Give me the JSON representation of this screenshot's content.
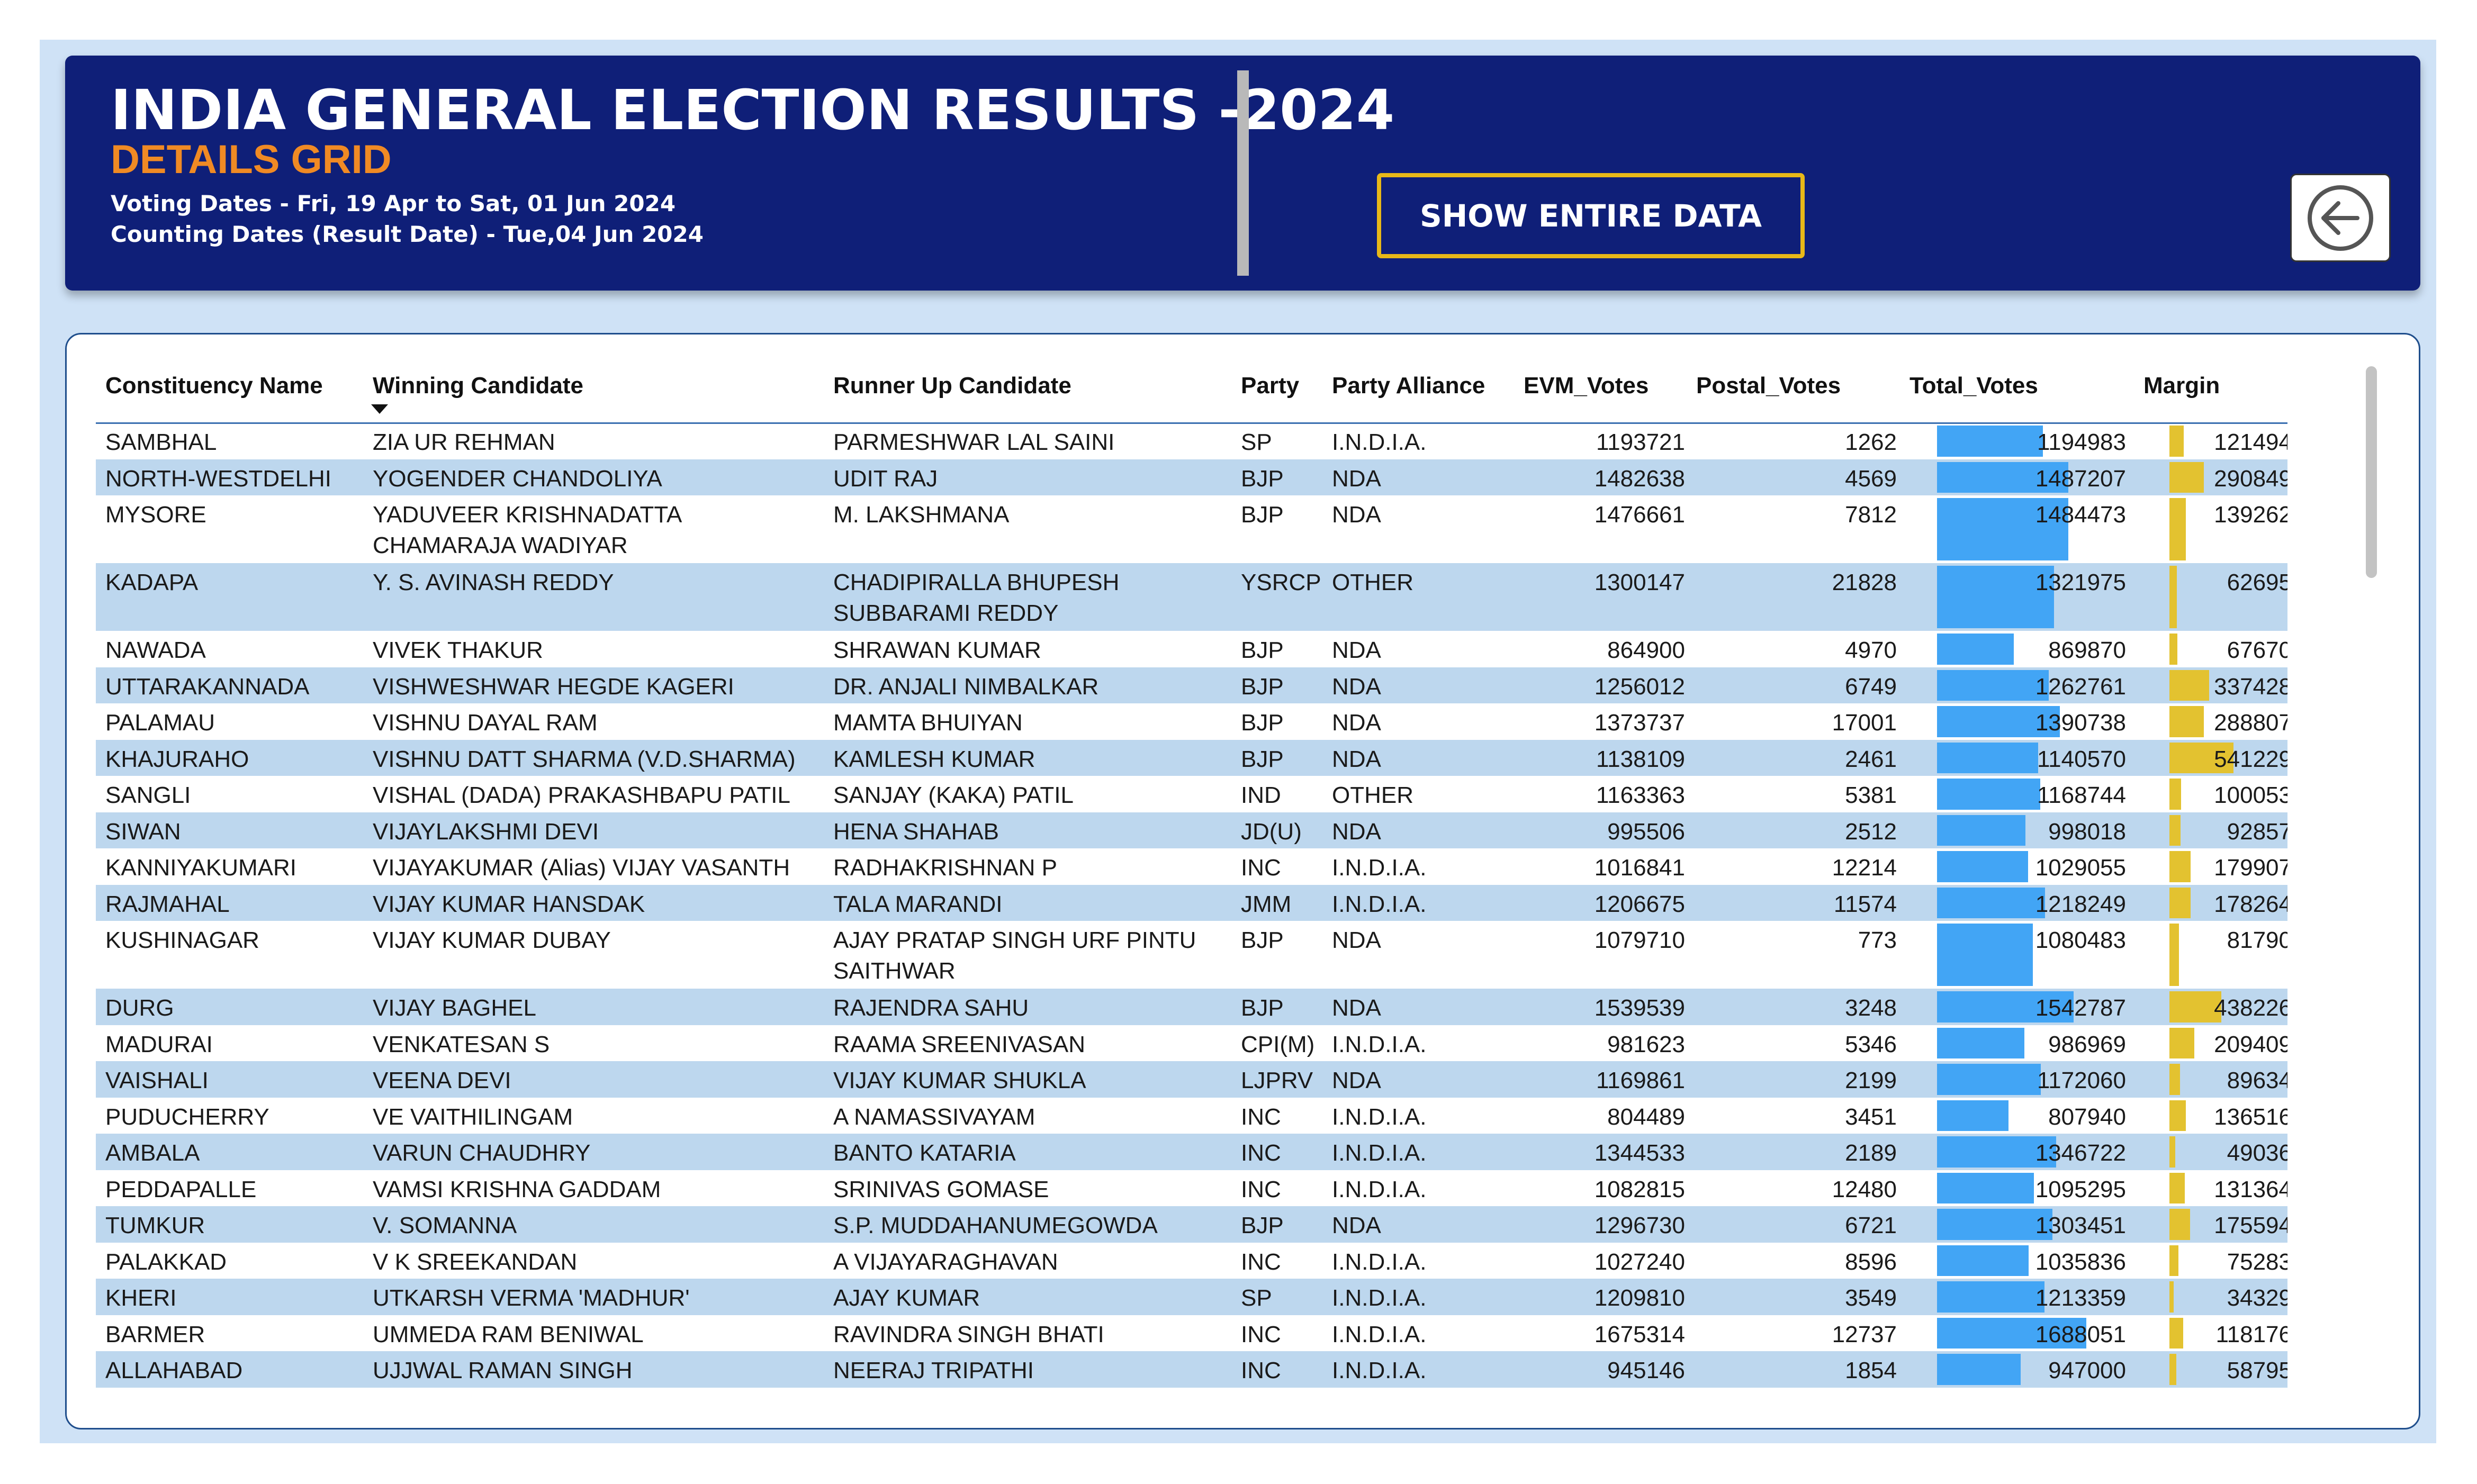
{
  "header": {
    "title": "INDIA GENERAL ELECTION RESULTS -2024",
    "subtitle": "DETAILS GRID",
    "voting_dates": "Voting Dates - Fri, 19 Apr to Sat, 01 Jun 2024",
    "counting_dates": "Counting Dates (Result Date) - Tue,04 Jun 2024",
    "show_button_label": "SHOW ENTIRE DATA",
    "back_icon": "back-arrow-icon"
  },
  "table": {
    "columns": [
      "Constituency Name",
      "Winning Candidate",
      "Runner Up Candidate",
      "Party",
      "Party Alliance",
      "EVM_Votes",
      "Postal_Votes",
      "Total_Votes",
      "Margin"
    ],
    "sorted_column": "Winning Candidate",
    "sort_direction": "descending",
    "bar_colors": {
      "total_votes": "#42a5f5",
      "margin": "#e3c230"
    },
    "rows": [
      {
        "constituency": "SAMBHAL",
        "winner": "ZIA UR REHMAN",
        "runner_up": "PARMESHWAR LAL SAINI",
        "party": "SP",
        "alliance": "I.N.D.I.A.",
        "evm": "1193721",
        "postal": "1262",
        "total": "1194983",
        "margin": "121494"
      },
      {
        "constituency": "NORTH-WESTDELHI",
        "winner": "YOGENDER CHANDOLIYA",
        "runner_up": "UDIT RAJ",
        "party": "BJP",
        "alliance": "NDA",
        "evm": "1482638",
        "postal": "4569",
        "total": "1487207",
        "margin": "290849"
      },
      {
        "constituency": "MYSORE",
        "winner": "YADUVEER KRISHNADATTA CHAMARAJA WADIYAR",
        "runner_up": "M. LAKSHMANA",
        "party": "BJP",
        "alliance": "NDA",
        "evm": "1476661",
        "postal": "7812",
        "total": "1484473",
        "margin": "139262"
      },
      {
        "constituency": "KADAPA",
        "winner": "Y. S. AVINASH REDDY",
        "runner_up": "CHADIPIRALLA BHUPESH SUBBARAMI REDDY",
        "party": "YSRCP",
        "alliance": "OTHER",
        "evm": "1300147",
        "postal": "21828",
        "total": "1321975",
        "margin": "62695"
      },
      {
        "constituency": "NAWADA",
        "winner": "VIVEK THAKUR",
        "runner_up": "SHRAWAN KUMAR",
        "party": "BJP",
        "alliance": "NDA",
        "evm": "864900",
        "postal": "4970",
        "total": "869870",
        "margin": "67670"
      },
      {
        "constituency": "UTTARAKANNADA",
        "winner": "VISHWESHWAR HEGDE KAGERI",
        "runner_up": "DR. ANJALI NIMBALKAR",
        "party": "BJP",
        "alliance": "NDA",
        "evm": "1256012",
        "postal": "6749",
        "total": "1262761",
        "margin": "337428"
      },
      {
        "constituency": "PALAMAU",
        "winner": "VISHNU DAYAL RAM",
        "runner_up": "MAMTA BHUIYAN",
        "party": "BJP",
        "alliance": "NDA",
        "evm": "1373737",
        "postal": "17001",
        "total": "1390738",
        "margin": "288807"
      },
      {
        "constituency": "KHAJURAHO",
        "winner": "VISHNU DATT SHARMA (V.D.SHARMA)",
        "runner_up": "KAMLESH KUMAR",
        "party": "BJP",
        "alliance": "NDA",
        "evm": "1138109",
        "postal": "2461",
        "total": "1140570",
        "margin": "541229"
      },
      {
        "constituency": "SANGLI",
        "winner": "VISHAL (DADA) PRAKASHBAPU PATIL",
        "runner_up": "SANJAY (KAKA) PATIL",
        "party": "IND",
        "alliance": "OTHER",
        "evm": "1163363",
        "postal": "5381",
        "total": "1168744",
        "margin": "100053"
      },
      {
        "constituency": "SIWAN",
        "winner": "VIJAYLAKSHMI DEVI",
        "runner_up": "HENA SHAHAB",
        "party": "JD(U)",
        "alliance": "NDA",
        "evm": "995506",
        "postal": "2512",
        "total": "998018",
        "margin": "92857"
      },
      {
        "constituency": "KANNIYAKUMARI",
        "winner": "VIJAYAKUMAR (Alias) VIJAY VASANTH",
        "runner_up": "RADHAKRISHNAN P",
        "party": "INC",
        "alliance": "I.N.D.I.A.",
        "evm": "1016841",
        "postal": "12214",
        "total": "1029055",
        "margin": "179907"
      },
      {
        "constituency": "RAJMAHAL",
        "winner": "VIJAY KUMAR HANSDAK",
        "runner_up": "TALA MARANDI",
        "party": "JMM",
        "alliance": "I.N.D.I.A.",
        "evm": "1206675",
        "postal": "11574",
        "total": "1218249",
        "margin": "178264"
      },
      {
        "constituency": "KUSHINAGAR",
        "winner": "VIJAY KUMAR DUBAY",
        "runner_up": "AJAY PRATAP SINGH URF PINTU SAITHWAR",
        "party": "BJP",
        "alliance": "NDA",
        "evm": "1079710",
        "postal": "773",
        "total": "1080483",
        "margin": "81790"
      },
      {
        "constituency": "DURG",
        "winner": "VIJAY BAGHEL",
        "runner_up": "RAJENDRA SAHU",
        "party": "BJP",
        "alliance": "NDA",
        "evm": "1539539",
        "postal": "3248",
        "total": "1542787",
        "margin": "438226"
      },
      {
        "constituency": "MADURAI",
        "winner": "VENKATESAN S",
        "runner_up": "RAAMA SREENIVASAN",
        "party": "CPI(M)",
        "alliance": "I.N.D.I.A.",
        "evm": "981623",
        "postal": "5346",
        "total": "986969",
        "margin": "209409"
      },
      {
        "constituency": "VAISHALI",
        "winner": "VEENA DEVI",
        "runner_up": "VIJAY KUMAR SHUKLA",
        "party": "LJPRV",
        "alliance": "NDA",
        "evm": "1169861",
        "postal": "2199",
        "total": "1172060",
        "margin": "89634"
      },
      {
        "constituency": "PUDUCHERRY",
        "winner": "VE VAITHILINGAM",
        "runner_up": "A NAMASSIVAYAM",
        "party": "INC",
        "alliance": "I.N.D.I.A.",
        "evm": "804489",
        "postal": "3451",
        "total": "807940",
        "margin": "136516"
      },
      {
        "constituency": "AMBALA",
        "winner": "VARUN CHAUDHRY",
        "runner_up": "BANTO KATARIA",
        "party": "INC",
        "alliance": "I.N.D.I.A.",
        "evm": "1344533",
        "postal": "2189",
        "total": "1346722",
        "margin": "49036"
      },
      {
        "constituency": "PEDDAPALLE",
        "winner": "VAMSI KRISHNA GADDAM",
        "runner_up": "SRINIVAS GOMASE",
        "party": "INC",
        "alliance": "I.N.D.I.A.",
        "evm": "1082815",
        "postal": "12480",
        "total": "1095295",
        "margin": "131364"
      },
      {
        "constituency": "TUMKUR",
        "winner": "V. SOMANNA",
        "runner_up": "S.P. MUDDAHANUMEGOWDA",
        "party": "BJP",
        "alliance": "NDA",
        "evm": "1296730",
        "postal": "6721",
        "total": "1303451",
        "margin": "175594"
      },
      {
        "constituency": "PALAKKAD",
        "winner": "V K SREEKANDAN",
        "runner_up": "A VIJAYARAGHAVAN",
        "party": "INC",
        "alliance": "I.N.D.I.A.",
        "evm": "1027240",
        "postal": "8596",
        "total": "1035836",
        "margin": "75283"
      },
      {
        "constituency": "KHERI",
        "winner": "UTKARSH VERMA 'MADHUR'",
        "runner_up": "AJAY KUMAR",
        "party": "SP",
        "alliance": "I.N.D.I.A.",
        "evm": "1209810",
        "postal": "3549",
        "total": "1213359",
        "margin": "34329"
      },
      {
        "constituency": "BARMER",
        "winner": "UMMEDA RAM BENIWAL",
        "runner_up": "RAVINDRA SINGH BHATI",
        "party": "INC",
        "alliance": "I.N.D.I.A.",
        "evm": "1675314",
        "postal": "12737",
        "total": "1688051",
        "margin": "118176"
      },
      {
        "constituency": "ALLAHABAD",
        "winner": "UJJWAL RAMAN SINGH",
        "runner_up": "NEERAJ TRIPATHI",
        "party": "INC",
        "alliance": "I.N.D.I.A.",
        "evm": "945146",
        "postal": "1854",
        "total": "947000",
        "margin": "58795"
      }
    ]
  }
}
